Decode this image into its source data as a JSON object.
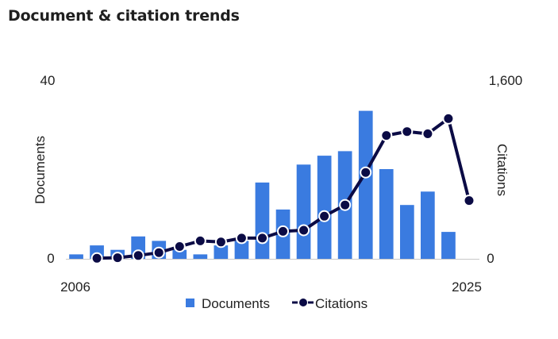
{
  "header": {
    "title": "Document & citation trends"
  },
  "colors": {
    "documents": "#3a7be0",
    "citations": "#0b0b45",
    "axis": "#c8c8c8"
  },
  "chart_data": {
    "type": "bar",
    "title": "Document & citation trends",
    "x": [
      2006,
      2007,
      2008,
      2009,
      2010,
      2011,
      2012,
      2013,
      2014,
      2015,
      2016,
      2017,
      2018,
      2019,
      2020,
      2021,
      2022,
      2023,
      2024,
      2025
    ],
    "x_tick_labels": [
      "2006",
      "2025"
    ],
    "series": [
      {
        "name": "Documents",
        "type": "bar",
        "axis": "left",
        "values": [
          1,
          3,
          2,
          5,
          4,
          2,
          1,
          3,
          4,
          17,
          11,
          21,
          23,
          24,
          33,
          20,
          12,
          15,
          6,
          0
        ]
      },
      {
        "name": "Citations",
        "type": "line",
        "axis": "right",
        "values": [
          null,
          5,
          10,
          30,
          55,
          110,
          160,
          150,
          185,
          185,
          245,
          255,
          380,
          480,
          770,
          1100,
          1135,
          1115,
          1250,
          520
        ]
      }
    ],
    "y_left": {
      "label": "Documents",
      "ylim": [
        0,
        40
      ],
      "tick_labels": [
        "0",
        "40"
      ]
    },
    "y_right": {
      "label": "Citations",
      "ylim": [
        0,
        1600
      ],
      "tick_labels": [
        "0",
        "1,600"
      ]
    },
    "grid": false,
    "legend_position": "bottom"
  }
}
